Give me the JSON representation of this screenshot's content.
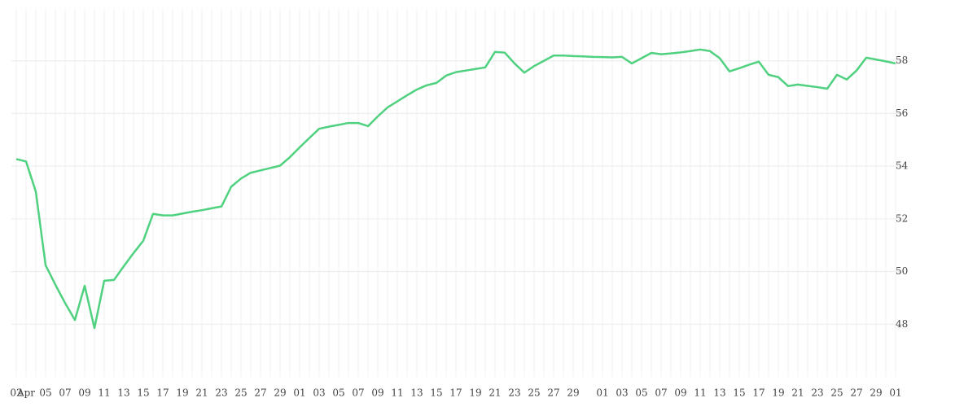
{
  "chart_data": {
    "type": "line",
    "categories": [
      "02",
      "Apr",
      null,
      "05",
      null,
      "07",
      null,
      "09",
      null,
      "11",
      null,
      "13",
      null,
      "15",
      null,
      "17",
      null,
      "19",
      null,
      "21",
      null,
      "23",
      null,
      "25",
      null,
      "27",
      null,
      "29",
      null,
      "01",
      null,
      "03",
      null,
      "05",
      null,
      "07",
      null,
      "09",
      null,
      "11",
      null,
      "13",
      null,
      "15",
      null,
      "17",
      null,
      "19",
      null,
      "21",
      null,
      "23",
      null,
      "25",
      null,
      "27",
      null,
      "29",
      null,
      null,
      "01",
      null,
      "03",
      null,
      "05",
      null,
      "07",
      null,
      "09",
      null,
      "11",
      null,
      "13",
      null,
      "15",
      null,
      "17",
      null,
      "19",
      null,
      "21",
      null,
      "23",
      null,
      "25",
      null,
      "27",
      null,
      "29",
      null,
      "01"
    ],
    "series": [
      {
        "color": "#4fd17f",
        "values": [
          54.27,
          54.18,
          53.03,
          50.24,
          49.5,
          48.8,
          48.16,
          49.46,
          47.85,
          49.65,
          49.68,
          50.2,
          50.7,
          51.17,
          52.19,
          52.13,
          52.13,
          52.2,
          52.27,
          52.33,
          52.4,
          52.47,
          53.22,
          53.53,
          53.75,
          53.84,
          53.93,
          54.02,
          54.34,
          54.71,
          55.07,
          55.42,
          55.5,
          55.57,
          55.64,
          55.64,
          55.52,
          55.89,
          56.23,
          56.46,
          56.69,
          56.91,
          57.07,
          57.16,
          57.44,
          57.57,
          57.63,
          57.69,
          57.75,
          58.34,
          58.31,
          57.9,
          57.55,
          57.8,
          58.0,
          58.2,
          58.2,
          58.18,
          58.17,
          58.15,
          58.14,
          58.13,
          58.15,
          57.9,
          58.1,
          58.3,
          58.25,
          58.28,
          58.32,
          58.37,
          58.43,
          58.37,
          58.1,
          57.6,
          57.72,
          57.85,
          57.97,
          57.47,
          57.38,
          57.04,
          57.1,
          57.05,
          57.0,
          56.94,
          57.47,
          57.29,
          57.63,
          58.12,
          58.05,
          57.98,
          57.9
        ]
      }
    ],
    "ylim": [
      46,
      60
    ],
    "yticks": [
      48,
      50,
      52,
      54,
      56,
      58
    ],
    "grid": true
  }
}
